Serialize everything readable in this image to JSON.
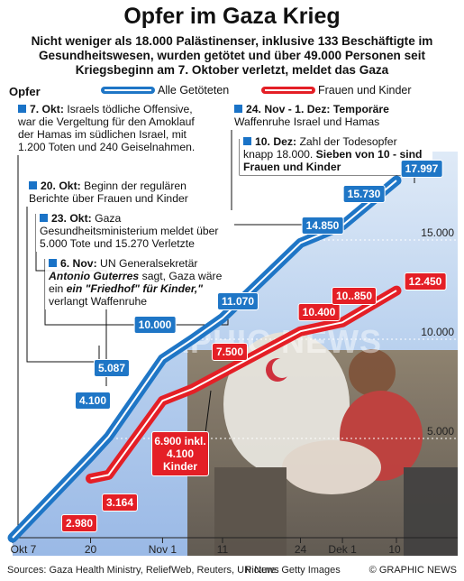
{
  "title": "Opfer im Gaza Krieg",
  "subtitle": "Nicht weniger als 18.000 Palästinenser, inklusive 133 Beschäftigte im Gesundheitswesen, wurden getötet und über 49.000 Personen seit Kriegsbeginn am 7. Oktober verletzt, meldet das Gaza Gesundheitsministerium",
  "y_axis_title": "Opfer",
  "legend": {
    "all": "Alle Getöteten",
    "women": "Frauen und Kinder"
  },
  "colors": {
    "all": "#1f76c6",
    "women": "#e41f26",
    "bullet": "#1a73c7"
  },
  "annotations": {
    "a1": {
      "bold": "7. Okt:",
      "text": "Israels tödliche Offensive, war die Vergeltung für den Amoklauf der Hamas im südlichen Israel, mit 1.200 Toten und 240 Geiselnahmen."
    },
    "a2": {
      "bold": "20. Okt:",
      "text": "Beginn der regulären Berichte über Frauen und Kinder"
    },
    "a3": {
      "bold": "23. Okt:",
      "text": "Gaza Gesundheitsministerium meldet über 5.000 Tote und 15.270 Verletzte"
    },
    "a4": {
      "bold": "6. Nov:",
      "text1": "UN Generalsekretär",
      "italic": "Antonio Guterres",
      "text2": "sagt, Gaza wäre ein",
      "quote": "ein \"Friedhof\" für Kinder,\"",
      "text3": "verlangt Waffenruhe"
    },
    "a5": {
      "bold": "24. Nov - 1. Dez: Temporäre",
      "text": "Waffenruhe Israel und Hamas"
    },
    "a6": {
      "bold": "10. Dez:",
      "text": "Zahl der Todesopfer knapp 18.000.",
      "bold2": "Sieben von 10 - sind Frauen und Kinder"
    }
  },
  "blue_labels": [
    "4.100",
    "5.087",
    "10.000",
    "11.070",
    "14.850",
    "15.730",
    "17.997"
  ],
  "red_labels": [
    "2.980",
    "3.164",
    "7.500",
    "10.400",
    "10..850",
    "12.450"
  ],
  "red_callout": "6.900 inkl. 4.100 Kinder",
  "chart_data": {
    "type": "area",
    "x_axis": {
      "ticks": [
        "Okt 7",
        "20",
        "Nov 1",
        "11",
        "24",
        "Dek 1",
        "10"
      ]
    },
    "y_axis": {
      "ticks": [
        "5.000",
        "10.000",
        "15.000"
      ],
      "range": [
        0,
        19000
      ]
    },
    "series": [
      {
        "name": "Alle Getöteten",
        "points": [
          [
            "Okt 7",
            0
          ],
          [
            "Okt 20",
            4100
          ],
          [
            "Okt 23",
            5087
          ],
          [
            "Nov 1",
            9000
          ],
          [
            "Nov 6",
            10000
          ],
          [
            "Nov 11",
            11070
          ],
          [
            "Nov 24",
            14850
          ],
          [
            "Dez 1",
            15730
          ],
          [
            "Dez 10",
            17997
          ]
        ]
      },
      {
        "name": "Frauen und Kinder",
        "points": [
          [
            "Okt 20",
            2980
          ],
          [
            "Okt 23",
            3164
          ],
          [
            "Nov 1",
            6900
          ],
          [
            "Nov 6",
            7500
          ],
          [
            "Nov 24",
            10400
          ],
          [
            "Dez 1",
            10850
          ],
          [
            "Dez 10",
            12450
          ]
        ]
      }
    ]
  },
  "footer": {
    "sources": "Sources: Gaza Health Ministry, ReliefWeb, Reuters, UN News",
    "photo": "Picture: Getty Images",
    "copyright": "© GRAPHIC NEWS"
  },
  "watermark": "GRAPHIC NEWS"
}
